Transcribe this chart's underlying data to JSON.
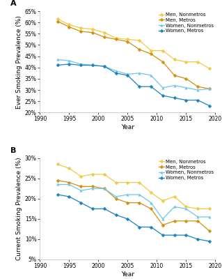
{
  "panel_A": {
    "title": "A",
    "ylabel": "Ever Smoking Prevalence (%)",
    "xlabel": "Year",
    "ylim": [
      20,
      65
    ],
    "yticks": [
      20,
      25,
      30,
      35,
      40,
      45,
      50,
      55,
      60,
      65
    ],
    "xlim": [
      1990,
      2020
    ],
    "xticks": [
      1990,
      1995,
      2000,
      2005,
      2010,
      2015,
      2020
    ],
    "series": {
      "men_nonmetro": {
        "label": "Men, Nonmetros",
        "color": "#F5C842",
        "marker": "D",
        "x": [
          1993,
          1995,
          1997,
          1999,
          2001,
          2003,
          2005,
          2007,
          2009,
          2011,
          2013,
          2015,
          2017,
          2019
        ],
        "y": [
          61.5,
          59.0,
          57.5,
          57.0,
          55.5,
          53.0,
          52.5,
          52.0,
          47.5,
          47.5,
          43.5,
          42.5,
          42.5,
          39.5
        ]
      },
      "men_metro": {
        "label": "Men, Metros",
        "color": "#D4900A",
        "marker": "D",
        "x": [
          1993,
          1995,
          1997,
          1999,
          2001,
          2003,
          2005,
          2007,
          2009,
          2011,
          2013,
          2015,
          2017,
          2019
        ],
        "y": [
          60.5,
          58.0,
          56.0,
          55.5,
          53.5,
          52.5,
          51.5,
          48.0,
          46.0,
          42.5,
          36.5,
          35.0,
          31.5,
          30.5
        ]
      },
      "women_nonmetro": {
        "label": "Women, Nonmetros",
        "color": "#6EC6E8",
        "marker": "^",
        "x": [
          1993,
          1995,
          1997,
          1999,
          2001,
          2003,
          2005,
          2007,
          2009,
          2011,
          2013,
          2015,
          2017,
          2019
        ],
        "y": [
          43.5,
          43.0,
          41.5,
          41.0,
          40.5,
          38.5,
          37.0,
          37.5,
          36.5,
          31.0,
          32.0,
          31.0,
          30.0,
          30.5
        ]
      },
      "women_metro": {
        "label": "Women, Metros",
        "color": "#1A82C4",
        "marker": "D",
        "x": [
          1993,
          1995,
          1997,
          1999,
          2001,
          2003,
          2005,
          2007,
          2009,
          2011,
          2013,
          2015,
          2017,
          2019
        ],
        "y": [
          41.0,
          41.5,
          41.0,
          41.0,
          40.5,
          37.5,
          36.5,
          31.5,
          31.5,
          27.5,
          26.5,
          25.5,
          25.5,
          23.0
        ]
      }
    }
  },
  "panel_B": {
    "title": "B",
    "ylabel": "Current Smoking Prevalence (%)",
    "xlabel": "Year",
    "ylim": [
      5,
      30
    ],
    "yticks": [
      5,
      10,
      15,
      20,
      25,
      30
    ],
    "xlim": [
      1990,
      2020
    ],
    "xticks": [
      1990,
      1995,
      2000,
      2005,
      2010,
      2015,
      2020
    ],
    "series": {
      "men_nonmetro": {
        "label": "Men, Nonmetros",
        "color": "#F5C842",
        "marker": "D",
        "x": [
          1993,
          1995,
          1997,
          1999,
          2001,
          2003,
          2005,
          2007,
          2009,
          2011,
          2013,
          2015,
          2017,
          2019
        ],
        "y": [
          28.5,
          27.5,
          25.5,
          26.0,
          26.0,
          24.0,
          24.0,
          24.0,
          21.5,
          19.5,
          20.5,
          18.0,
          17.5,
          17.5
        ]
      },
      "men_metro": {
        "label": "Men, Metros",
        "color": "#D4900A",
        "marker": "D",
        "x": [
          1993,
          1995,
          1997,
          1999,
          2001,
          2003,
          2005,
          2007,
          2009,
          2011,
          2013,
          2015,
          2017,
          2019
        ],
        "y": [
          24.5,
          24.0,
          23.0,
          23.0,
          22.5,
          20.0,
          19.0,
          19.0,
          17.5,
          13.5,
          14.5,
          14.5,
          14.5,
          12.0
        ]
      },
      "women_nonmetro": {
        "label": "Women, Nonmetros",
        "color": "#6EC6E8",
        "marker": "^",
        "x": [
          1993,
          1995,
          1997,
          1999,
          2001,
          2003,
          2005,
          2007,
          2009,
          2011,
          2013,
          2015,
          2017,
          2019
        ],
        "y": [
          23.5,
          23.5,
          22.0,
          22.5,
          22.5,
          20.5,
          21.0,
          21.0,
          19.0,
          15.0,
          18.0,
          17.5,
          15.5,
          15.5
        ]
      },
      "women_metro": {
        "label": "Women, Metros",
        "color": "#1A82C4",
        "marker": "D",
        "x": [
          1993,
          1995,
          1997,
          1999,
          2001,
          2003,
          2005,
          2007,
          2009,
          2011,
          2013,
          2015,
          2017,
          2019
        ],
        "y": [
          21.0,
          20.5,
          19.0,
          17.5,
          17.5,
          16.0,
          15.0,
          13.0,
          13.0,
          11.0,
          11.0,
          11.0,
          10.0,
          9.5
        ]
      }
    }
  },
  "background_color": "#ffffff",
  "tick_fontsize": 5.5,
  "label_fontsize": 6.5,
  "legend_fontsize": 5.0,
  "linewidth": 0.9,
  "markersize": 2.5
}
